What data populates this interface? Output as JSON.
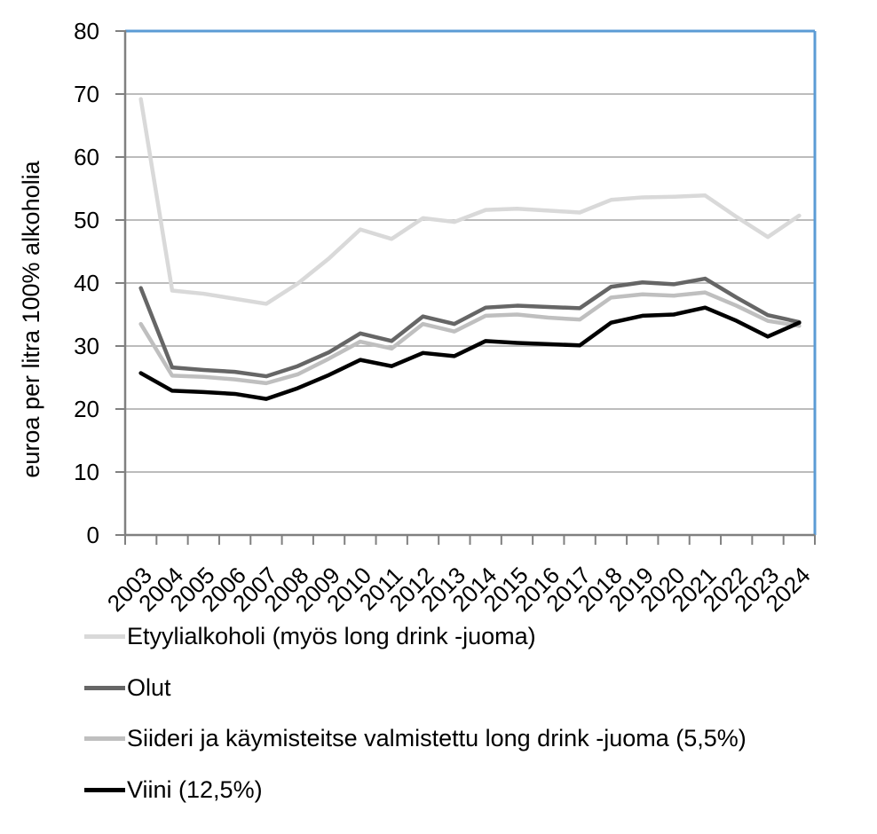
{
  "chart_data": {
    "type": "line",
    "title": "",
    "xlabel": "",
    "ylabel": "euroa per litra 100% alkoholia",
    "ylim": [
      0,
      80
    ],
    "ytick_interval": 10,
    "yticks": [
      0,
      10,
      20,
      30,
      40,
      50,
      60,
      70,
      80
    ],
    "grid": "horizontal",
    "legend_position": "bottom-left",
    "background_color": "#ffffff",
    "plot_border_color": "#5b9bd5",
    "axis_color": "#808080",
    "gridline_color": "#a6a6a6",
    "tick_label_color": "#000000",
    "categories": [
      "2003",
      "2004",
      "2005",
      "2006",
      "2007",
      "2008",
      "2009",
      "2010",
      "2011",
      "2012",
      "2013",
      "2014",
      "2015",
      "2016",
      "2017",
      "2018",
      "2019",
      "2020",
      "2021",
      "2022",
      "2023",
      "2024"
    ],
    "series": [
      {
        "name": "Etyylialkoholi (myös long drink -juoma)",
        "color": "#d9d9d9",
        "values": [
          69.2,
          38.8,
          38.3,
          37.5,
          36.7,
          39.9,
          43.9,
          48.5,
          47.0,
          50.3,
          49.7,
          51.6,
          51.8,
          51.5,
          51.2,
          53.2,
          53.6,
          53.7,
          53.9,
          50.5,
          47.3,
          50.7
        ]
      },
      {
        "name": "Olut",
        "color": "#666666",
        "values": [
          39.2,
          26.6,
          26.2,
          25.9,
          25.2,
          26.8,
          29.0,
          32.0,
          30.8,
          34.7,
          33.5,
          36.1,
          36.4,
          36.2,
          36.0,
          39.4,
          40.1,
          39.8,
          40.7,
          37.7,
          34.9,
          33.8
        ]
      },
      {
        "name": "Siideri ja käymisteitse valmistettu long drink -juoma (5,5%)",
        "color": "#bfbfbf",
        "values": [
          33.5,
          25.3,
          25.1,
          24.7,
          24.1,
          25.5,
          28.0,
          30.7,
          29.6,
          33.5,
          32.3,
          34.8,
          35.0,
          34.5,
          34.2,
          37.7,
          38.2,
          38.0,
          38.5,
          36.4,
          34.0,
          33.2
        ]
      },
      {
        "name": "Viini (12,5%)",
        "color": "#000000",
        "values": [
          25.7,
          22.9,
          22.7,
          22.4,
          21.6,
          23.3,
          25.4,
          27.8,
          26.8,
          28.9,
          28.4,
          30.8,
          30.5,
          30.3,
          30.1,
          33.7,
          34.8,
          35.0,
          36.1,
          34.0,
          31.5,
          33.7
        ]
      }
    ]
  }
}
